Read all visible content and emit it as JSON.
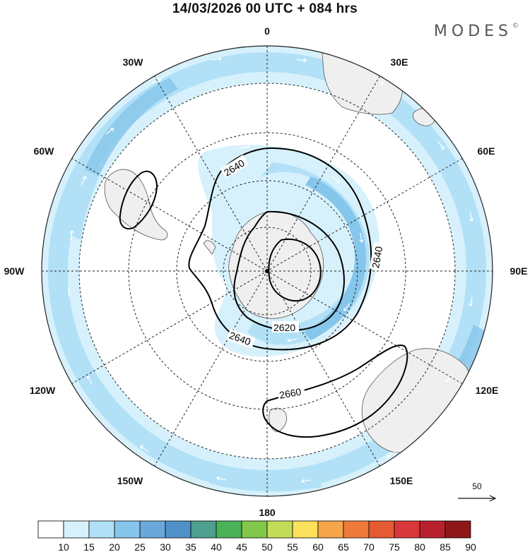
{
  "title": "14/03/2026  00 UTC  + 084 hrs",
  "brand": "MODES",
  "brand_mark": "©",
  "projection": "south-polar-stereographic",
  "longitude_labels": {
    "lon_0": "0",
    "lon_30e": "30E",
    "lon_60e": "60E",
    "lon_90e": "90E",
    "lon_120e": "120E",
    "lon_150e": "150E",
    "lon_180": "180",
    "lon_150w": "150W",
    "lon_120w": "120W",
    "lon_90w": "90W",
    "lon_60w": "60W",
    "lon_30w": "30W"
  },
  "contour_labels": {
    "c1": "2640",
    "c2": "2640",
    "c3": "2640",
    "c4": "2620",
    "c5": "2660"
  },
  "reference_vector": {
    "label": "50"
  },
  "colorbar": {
    "ticks": [
      "10",
      "15",
      "20",
      "25",
      "30",
      "35",
      "40",
      "45",
      "50",
      "55",
      "60",
      "65",
      "70",
      "75",
      "80",
      "85",
      "90"
    ],
    "colors": [
      "#ffffff",
      "#d7f1fc",
      "#b2e1f7",
      "#86c6ea",
      "#6aa8db",
      "#5191c9",
      "#4e9f8d",
      "#4cb25a",
      "#82c64b",
      "#c3dc57",
      "#fbe15c",
      "#f4a648",
      "#ee7a3a",
      "#e65a34",
      "#d9383a",
      "#b8202e",
      "#8e1718"
    ]
  },
  "colors": {
    "land": "#efefef",
    "coast": "#555555",
    "contour": "#000000",
    "grid": "#222222",
    "jet_light": "#d7f1fc",
    "jet_mid": "#b2e1f7",
    "jet_strong": "#86c6ea"
  }
}
